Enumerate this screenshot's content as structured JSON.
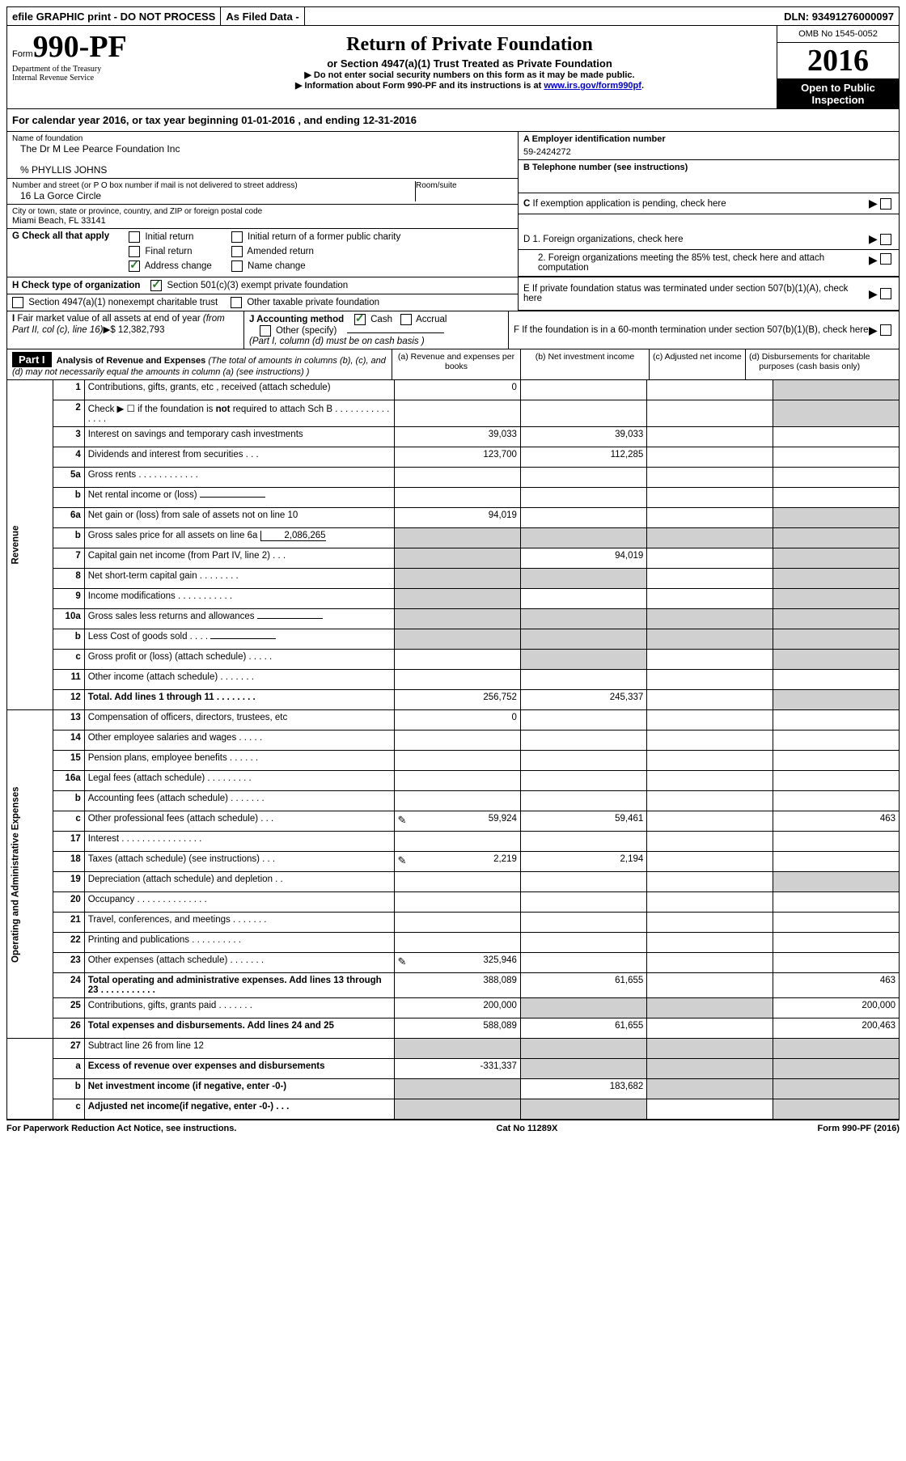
{
  "top": {
    "efile": "efile GRAPHIC print - DO NOT PROCESS",
    "asfiled": "As Filed Data -",
    "dln_label": "DLN:",
    "dln": "93491276000097"
  },
  "header": {
    "form_word": "Form",
    "form_num": "990-PF",
    "dept": "Department of the Treasury",
    "irs": "Internal Revenue Service",
    "title": "Return of Private Foundation",
    "subtitle": "or Section 4947(a)(1) Trust Treated as Private Foundation",
    "note1": "▶ Do not enter social security numbers on this form as it may be made public.",
    "note2_pre": "▶ Information about Form 990-PF and its instructions is at ",
    "note2_link": "www.irs.gov/form990pf",
    "omb": "OMB No 1545-0052",
    "year": "2016",
    "open": "Open to Public Inspection"
  },
  "calyear": "For calendar year 2016, or tax year beginning 01-01-2016           , and ending 12-31-2016",
  "info": {
    "name_label": "Name of foundation",
    "name": "The Dr M Lee Pearce Foundation Inc",
    "care_of": "% PHYLLIS JOHNS",
    "addr_label": "Number and street (or P O  box number if mail is not delivered to street address)",
    "room_label": "Room/suite",
    "addr": "16 La Gorce Circle",
    "city_label": "City or town, state or province, country, and ZIP or foreign postal code",
    "city": "Miami Beach, FL  33141",
    "a_label": "A Employer identification number",
    "a_val": "59-2424272",
    "b_label": "B Telephone number (see instructions)",
    "c_label": "C If exemption application is pending, check here",
    "d1": "D 1. Foreign organizations, check here",
    "d2": "2. Foreign organizations meeting the 85% test, check here and attach computation",
    "e_label": "E  If private foundation status was terminated under section 507(b)(1)(A), check here",
    "f_label": "F  If the foundation is in a 60-month termination under section 507(b)(1)(B), check here"
  },
  "g": {
    "label": "G Check all that apply",
    "opts": [
      "Initial return",
      "Initial return of a former public charity",
      "Final return",
      "Amended return",
      "Address change",
      "Name change"
    ]
  },
  "h": {
    "label": "H Check type of organization",
    "opt1": "Section 501(c)(3) exempt private foundation",
    "opt2": "Section 4947(a)(1) nonexempt charitable trust",
    "opt3": "Other taxable private foundation"
  },
  "i": {
    "label": "I Fair market value of all assets at end of year (from Part II, col  (c), line 16)▶$  12,382,793"
  },
  "j": {
    "label": "J Accounting method",
    "cash": "Cash",
    "accrual": "Accrual",
    "other": "Other (specify)",
    "note": "(Part I, column (d) must be on cash basis )"
  },
  "part1": {
    "tag": "Part I",
    "title": "Analysis of Revenue and Expenses",
    "sub": "(The total of amounts in columns (b), (c), and (d) may not necessarily equal the amounts in column (a) (see instructions) )",
    "cols": {
      "a": "(a)   Revenue and expenses per books",
      "b": "(b)   Net investment income",
      "c": "(c)   Adjusted net income",
      "d": "(d)   Disbursements for charitable purposes (cash basis only)"
    }
  },
  "side": {
    "rev": "Revenue",
    "exp": "Operating and Administrative Expenses"
  },
  "rows": [
    {
      "n": "1",
      "d": "Contributions, gifts, grants, etc , received (attach schedule)",
      "a": "0",
      "shade_d": true
    },
    {
      "n": "2",
      "d": "Check ▶ ☐  if the foundation is not required to attach Sch  B        .   .   .   .   .   .   .   .   .   .   .   .   .   .   .",
      "shade_d": true,
      "bold_not": true
    },
    {
      "n": "3",
      "d": "Interest on savings and temporary cash investments",
      "a": "39,033",
      "b": "39,033"
    },
    {
      "n": "4",
      "d": "Dividends and interest from securities     .   .   .",
      "a": "123,700",
      "b": "112,285"
    },
    {
      "n": "5a",
      "d": "Gross rents       .   .   .   .   .   .   .   .   .   .   .   ."
    },
    {
      "n": "b",
      "d": "Net rental income or (loss)",
      "inset": true
    },
    {
      "n": "6a",
      "d": "Net gain or (loss) from sale of assets not on line 10",
      "a": "94,019",
      "shade_d": true
    },
    {
      "n": "b",
      "d": "Gross sales price for all assets on line 6a",
      "inset": true,
      "inset_val": "2,086,265",
      "shade_all": true
    },
    {
      "n": "7",
      "d": "Capital gain net income (from Part IV, line 2)   .   .   .",
      "b": "94,019",
      "shade_a": true,
      "shade_d": true
    },
    {
      "n": "8",
      "d": "Net short-term capital gain   .   .   .   .   .   .   .   .",
      "shade_a": true,
      "shade_b": true,
      "shade_d": true
    },
    {
      "n": "9",
      "d": "Income modifications  .   .   .   .   .   .   .   .   .   .   .",
      "shade_a": true,
      "shade_d": true
    },
    {
      "n": "10a",
      "d": "Gross sales less returns and allowances",
      "inset": true,
      "shade_all": true
    },
    {
      "n": "b",
      "d": "Less  Cost of goods sold     .   .   .   .",
      "inset": true,
      "shade_all": true
    },
    {
      "n": "c",
      "d": "Gross profit or (loss) (attach schedule)    .   .   .   .   .",
      "shade_b": true,
      "shade_d": true
    },
    {
      "n": "11",
      "d": "Other income (attach schedule)     .   .   .   .   .   .   ."
    },
    {
      "n": "12",
      "d": "Total. Add lines 1 through 11   .   .   .   .   .   .   .   .",
      "a": "256,752",
      "b": "245,337",
      "bold": true,
      "shade_d": true
    }
  ],
  "exp_rows": [
    {
      "n": "13",
      "d": "Compensation of officers, directors, trustees, etc",
      "a": "0"
    },
    {
      "n": "14",
      "d": "Other employee salaries and wages     .   .   .   .   ."
    },
    {
      "n": "15",
      "d": "Pension plans, employee benefits    .   .   .   .   .   ."
    },
    {
      "n": "16a",
      "d": "Legal fees (attach schedule)  .   .   .   .   .   .   .   .   ."
    },
    {
      "n": "b",
      "d": "Accounting fees (attach schedule)  .   .   .   .   .   .   ."
    },
    {
      "n": "c",
      "d": "Other professional fees (attach schedule)    .   .   .",
      "a": "59,924",
      "b": "59,461",
      "dd": "463",
      "icon": true
    },
    {
      "n": "17",
      "d": "Interest  .   .   .   .   .   .   .   .   .   .   .   .   .   .   .   ."
    },
    {
      "n": "18",
      "d": "Taxes (attach schedule) (see instructions)    .   .   .",
      "a": "2,219",
      "b": "2,194",
      "icon": true
    },
    {
      "n": "19",
      "d": "Depreciation (attach schedule) and depletion   .   .",
      "shade_d": true
    },
    {
      "n": "20",
      "d": "Occupancy    .   .   .   .   .   .   .   .   .   .   .   .   .   ."
    },
    {
      "n": "21",
      "d": "Travel, conferences, and meetings .   .   .   .   .   .   ."
    },
    {
      "n": "22",
      "d": "Printing and publications  .   .   .   .   .   .   .   .   .   ."
    },
    {
      "n": "23",
      "d": "Other expenses (attach schedule)  .   .   .   .   .   .   .",
      "a": "325,946",
      "icon": true
    },
    {
      "n": "24",
      "d": "Total operating and administrative expenses. Add lines 13 through 23   .   .   .   .   .   .   .   .   .   .   .",
      "a": "388,089",
      "b": "61,655",
      "dd": "463",
      "bold": true
    },
    {
      "n": "25",
      "d": "Contributions, gifts, grants paid      .   .   .   .   .   .   .",
      "a": "200,000",
      "dd": "200,000",
      "shade_b": true,
      "shade_c": true
    },
    {
      "n": "26",
      "d": "Total expenses and disbursements. Add lines 24 and 25",
      "a": "588,089",
      "b": "61,655",
      "dd": "200,463",
      "bold": true
    }
  ],
  "r27": [
    {
      "n": "27",
      "d": "Subtract line 26 from line 12",
      "shade_all": true
    },
    {
      "n": "a",
      "d": "Excess of revenue over expenses and disbursements",
      "a": "-331,337",
      "bold": true,
      "shade_b": true,
      "shade_c": true,
      "shade_d": true
    },
    {
      "n": "b",
      "d": "Net investment income (if negative, enter -0-)",
      "b": "183,682",
      "bold": true,
      "shade_a": true,
      "shade_c": true,
      "shade_d": true
    },
    {
      "n": "c",
      "d": "Adjusted net income(if negative, enter -0-)   .   .   .",
      "bold": true,
      "shade_a": true,
      "shade_b": true,
      "shade_d": true
    }
  ],
  "footer": {
    "left": "For Paperwork Reduction Act Notice, see instructions.",
    "mid": "Cat  No  11289X",
    "right": "Form 990-PF (2016)"
  }
}
